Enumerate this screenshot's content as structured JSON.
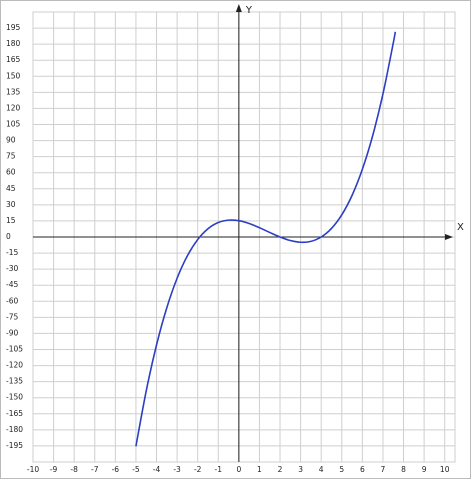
{
  "chart_data": {
    "type": "line",
    "x_label": "X",
    "y_label": "Y",
    "x": [
      -5,
      -4.5,
      -4,
      -3.5,
      -3,
      -2.5,
      -2,
      -1.5,
      -1,
      -0.5,
      0,
      0.5,
      1,
      1.5,
      2,
      2.5,
      3,
      3.5,
      4,
      4.5,
      5,
      5.5,
      6,
      6.5,
      7,
      7.5,
      7.6
    ],
    "y": [
      -195.3,
      -143.65,
      -100.8,
      -66,
      -38.5,
      -17.55,
      -2.4,
      7.7,
      13.5,
      15.75,
      15.2,
      12.6,
      8.7,
      4.25,
      0,
      -3.3,
      -4.9,
      -4.05,
      0,
      8,
      20.7,
      38.85,
      63.2,
      94.5,
      133.5,
      180.95,
      191.52
    ],
    "color": "#2b3fc4",
    "xlim": [
      -10,
      10.5
    ],
    "ylim": [
      -210,
      210
    ],
    "xticks": [
      -10,
      -9,
      -8,
      -7,
      -6,
      -5,
      -4,
      -3,
      -2,
      -1,
      0,
      1,
      2,
      3,
      4,
      5,
      6,
      7,
      8,
      9,
      10
    ],
    "yticks": [
      -195,
      -180,
      -165,
      -150,
      -135,
      -120,
      -105,
      -90,
      -75,
      -60,
      -45,
      -30,
      -15,
      0,
      15,
      30,
      45,
      60,
      75,
      90,
      105,
      120,
      135,
      150,
      165,
      180,
      195
    ],
    "grid": true
  }
}
